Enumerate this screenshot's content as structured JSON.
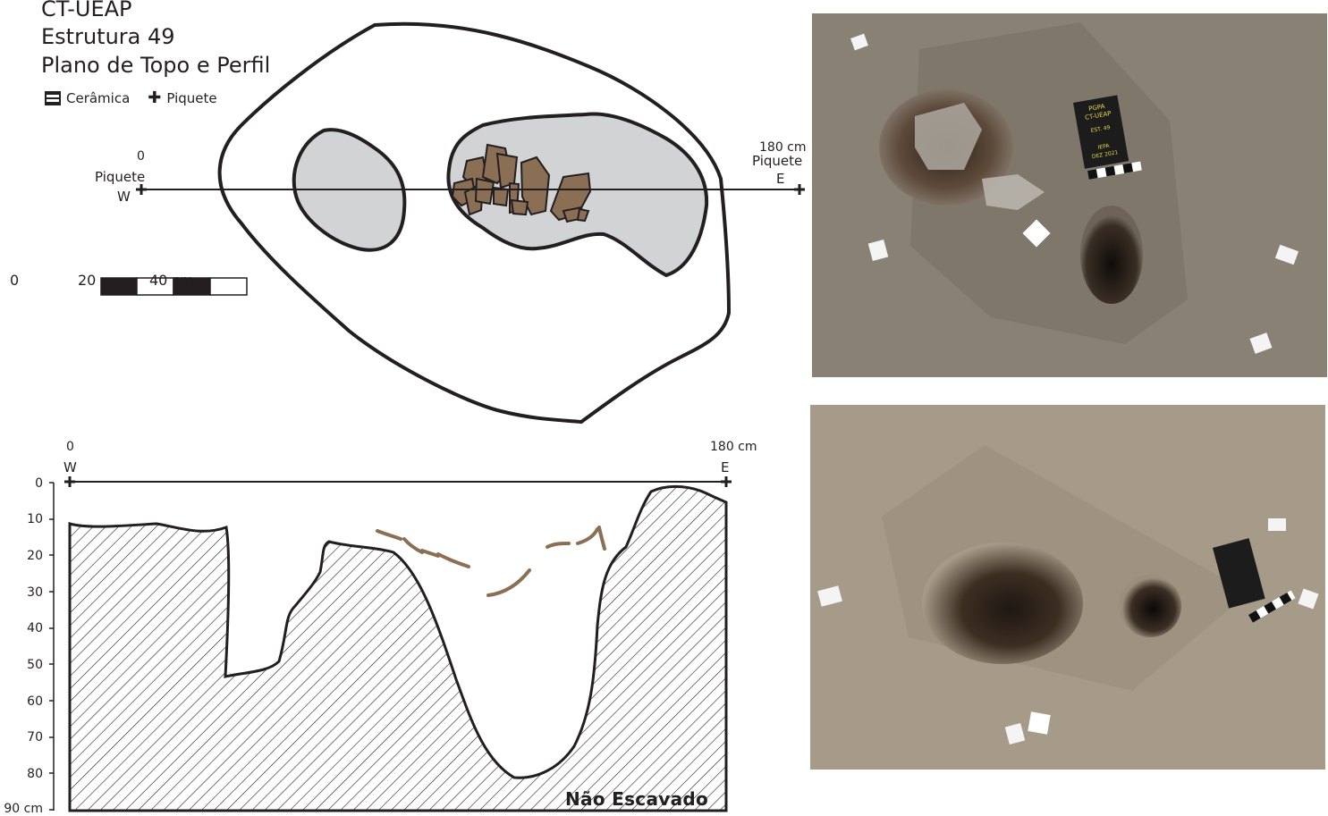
{
  "title": {
    "line1": "CT-UEAP",
    "line2": "Estrutura 49",
    "line3": "Plano de Topo e Perfil"
  },
  "legend": {
    "ceramic_label": "Cerâmica",
    "piquete_label": "Piquete",
    "ceramic_icon": "hatched-square-icon",
    "piquete_icon": "plus-icon"
  },
  "plan": {
    "west_distance": "0",
    "west_label": "Piquete",
    "west_dir": "W",
    "east_distance": "180 cm",
    "east_label": "Piquete",
    "east_dir": "E"
  },
  "scale_bar": {
    "labels": [
      "0",
      "20",
      "40 cm"
    ]
  },
  "profile": {
    "west_distance": "0",
    "west_dir": "W",
    "east_distance": "180 cm",
    "east_dir": "E",
    "depth_ticks": [
      "0",
      "10",
      "20",
      "30",
      "40",
      "50",
      "60",
      "70",
      "80",
      "90 cm"
    ],
    "not_excavated_label": "Não Escavado"
  },
  "photo1": {
    "board_lines": [
      "PGPA",
      "CT-UEAP",
      "EST. 49",
      "IEPA",
      "DEZ 2021"
    ]
  },
  "colors": {
    "ink": "#231f20",
    "fill_gray": "#d1d3d4",
    "ceramic": "#8b6f55",
    "soil": "#8a8175"
  }
}
